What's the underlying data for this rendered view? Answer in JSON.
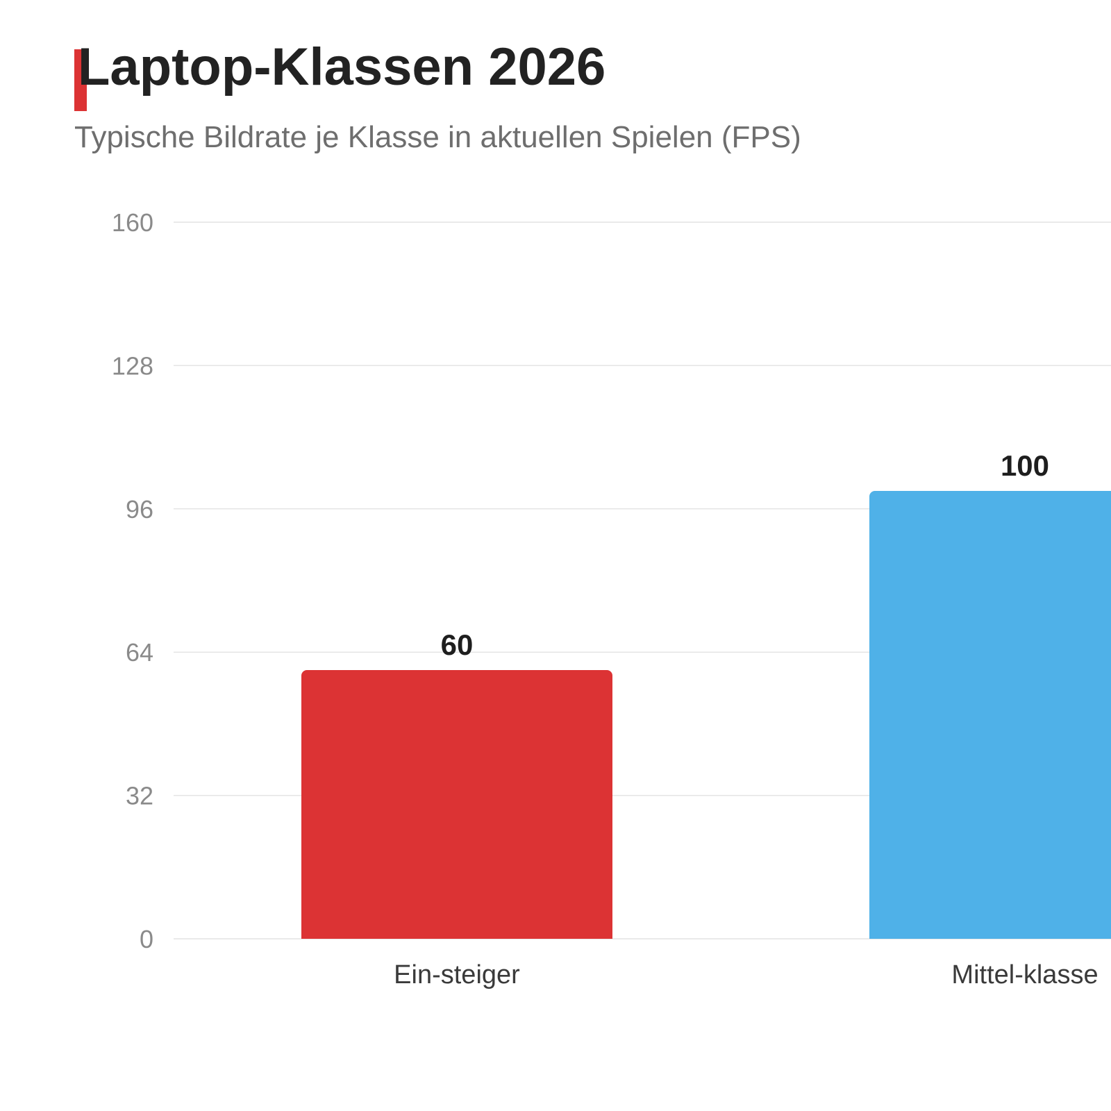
{
  "chart_data": {
    "type": "bar",
    "title": "Laptop-Klassen 2026",
    "subtitle": "Typische Bildrate je Klasse in aktuellen Spielen (FPS)",
    "categories": [
      "Ein-steiger",
      "Mittel-klasse"
    ],
    "values": [
      60,
      100
    ],
    "value_labels": [
      "60",
      "100"
    ],
    "ylim": [
      0,
      160
    ],
    "yticks": [
      0,
      32,
      64,
      96,
      128,
      160
    ],
    "ytick_labels": [
      "0",
      "32",
      "64",
      "96",
      "128",
      "160"
    ],
    "grid": true,
    "legend": "none",
    "colors": {
      "accent": "#dc3334",
      "bars": [
        "#dc3334",
        "#4fb1e8"
      ],
      "grid": "#e4e4e4"
    }
  }
}
